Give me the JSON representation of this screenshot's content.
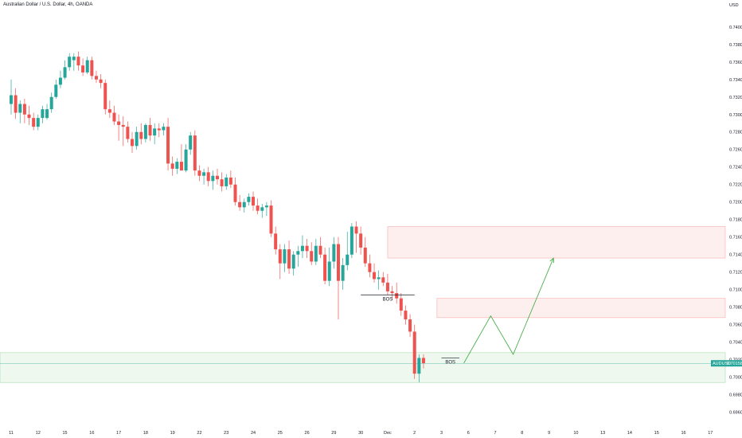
{
  "header": {
    "title": "Australian Dollar / U.S. Dollar, 4h, OANDA",
    "currency": "USD"
  },
  "colors": {
    "up": "#26a69a",
    "down": "#ef5350",
    "resistance_zone": "#ef5350",
    "support_zone": "#4caf50",
    "projection": "#4caf50",
    "axis_text": "#131722"
  },
  "chart_data": {
    "type": "candlestick",
    "symbol": "AUDUSD",
    "interval": "4h",
    "last_price": 0.70158,
    "last_price_label": "0.70158",
    "ylim": [
      0.6946,
      0.7418
    ],
    "y_ticks": [
      {
        "value": 0.74,
        "label": "0.74000"
      },
      {
        "value": 0.738,
        "label": "0.73800"
      },
      {
        "value": 0.736,
        "label": "0.73600"
      },
      {
        "value": 0.734,
        "label": "0.73400"
      },
      {
        "value": 0.732,
        "label": "0.73200"
      },
      {
        "value": 0.73,
        "label": "0.73000"
      },
      {
        "value": 0.728,
        "label": "0.72800"
      },
      {
        "value": 0.726,
        "label": "0.72600"
      },
      {
        "value": 0.724,
        "label": "0.72400"
      },
      {
        "value": 0.722,
        "label": "0.72200"
      },
      {
        "value": 0.72,
        "label": "0.72000"
      },
      {
        "value": 0.718,
        "label": "0.71800"
      },
      {
        "value": 0.716,
        "label": "0.71600"
      },
      {
        "value": 0.714,
        "label": "0.71400"
      },
      {
        "value": 0.712,
        "label": "0.71200"
      },
      {
        "value": 0.71,
        "label": "0.71000"
      },
      {
        "value": 0.708,
        "label": "0.70800"
      },
      {
        "value": 0.706,
        "label": "0.70600"
      },
      {
        "value": 0.704,
        "label": "0.70400"
      },
      {
        "value": 0.702,
        "label": "0.70200"
      },
      {
        "value": 0.7,
        "label": "0.70000"
      },
      {
        "value": 0.698,
        "label": "0.69800"
      },
      {
        "value": 0.696,
        "label": "0.69600"
      }
    ],
    "x_ticks": [
      {
        "label": "11",
        "bar": 0
      },
      {
        "label": "12",
        "bar": 6
      },
      {
        "label": "15",
        "bar": 12
      },
      {
        "label": "16",
        "bar": 18
      },
      {
        "label": "17",
        "bar": 24
      },
      {
        "label": "18",
        "bar": 30
      },
      {
        "label": "19",
        "bar": 36
      },
      {
        "label": "22",
        "bar": 42
      },
      {
        "label": "23",
        "bar": 48
      },
      {
        "label": "24",
        "bar": 54
      },
      {
        "label": "25",
        "bar": 60
      },
      {
        "label": "26",
        "bar": 66
      },
      {
        "label": "29",
        "bar": 72
      },
      {
        "label": "30",
        "bar": 78
      },
      {
        "label": "Dec",
        "bar": 84
      },
      {
        "label": "2",
        "bar": 90
      },
      {
        "label": "3",
        "bar": 96
      },
      {
        "label": "6",
        "bar": 102
      },
      {
        "label": "7",
        "bar": 108
      },
      {
        "label": "8",
        "bar": 114
      },
      {
        "label": "9",
        "bar": 120
      },
      {
        "label": "10",
        "bar": 126
      },
      {
        "label": "13",
        "bar": 132
      },
      {
        "label": "14",
        "bar": 138
      },
      {
        "label": "15",
        "bar": 144
      },
      {
        "label": "16",
        "bar": 150
      },
      {
        "label": "17",
        "bar": 156
      }
    ],
    "candles": [
      {
        "o": 0.7312,
        "h": 0.734,
        "l": 0.73,
        "c": 0.7322
      },
      {
        "o": 0.7322,
        "h": 0.733,
        "l": 0.7295,
        "c": 0.7302
      },
      {
        "o": 0.7302,
        "h": 0.7316,
        "l": 0.729,
        "c": 0.7312
      },
      {
        "o": 0.7312,
        "h": 0.7318,
        "l": 0.729,
        "c": 0.73
      },
      {
        "o": 0.73,
        "h": 0.731,
        "l": 0.7288,
        "c": 0.7296
      },
      {
        "o": 0.7296,
        "h": 0.7302,
        "l": 0.7282,
        "c": 0.7286
      },
      {
        "o": 0.7286,
        "h": 0.73,
        "l": 0.7282,
        "c": 0.7296
      },
      {
        "o": 0.7296,
        "h": 0.731,
        "l": 0.729,
        "c": 0.7306
      },
      {
        "o": 0.7296,
        "h": 0.7312,
        "l": 0.7294,
        "c": 0.7306
      },
      {
        "o": 0.7306,
        "h": 0.7325,
        "l": 0.7302,
        "c": 0.732
      },
      {
        "o": 0.732,
        "h": 0.734,
        "l": 0.7318,
        "c": 0.7334
      },
      {
        "o": 0.7334,
        "h": 0.735,
        "l": 0.733,
        "c": 0.7342
      },
      {
        "o": 0.7342,
        "h": 0.7362,
        "l": 0.734,
        "c": 0.7354
      },
      {
        "o": 0.7354,
        "h": 0.737,
        "l": 0.735,
        "c": 0.7366
      },
      {
        "o": 0.7362,
        "h": 0.737,
        "l": 0.735,
        "c": 0.7366
      },
      {
        "o": 0.7366,
        "h": 0.7372,
        "l": 0.735,
        "c": 0.7356
      },
      {
        "o": 0.7356,
        "h": 0.7364,
        "l": 0.7344,
        "c": 0.7348
      },
      {
        "o": 0.7348,
        "h": 0.7366,
        "l": 0.7346,
        "c": 0.7362
      },
      {
        "o": 0.7362,
        "h": 0.7366,
        "l": 0.734,
        "c": 0.7344
      },
      {
        "o": 0.7344,
        "h": 0.735,
        "l": 0.7336,
        "c": 0.734
      },
      {
        "o": 0.734,
        "h": 0.7346,
        "l": 0.733,
        "c": 0.7336
      },
      {
        "o": 0.7336,
        "h": 0.734,
        "l": 0.73,
        "c": 0.7306
      },
      {
        "o": 0.7306,
        "h": 0.7316,
        "l": 0.7296,
        "c": 0.7302
      },
      {
        "o": 0.7302,
        "h": 0.731,
        "l": 0.7288,
        "c": 0.7292
      },
      {
        "o": 0.7292,
        "h": 0.73,
        "l": 0.727,
        "c": 0.7288
      },
      {
        "o": 0.7288,
        "h": 0.7298,
        "l": 0.7264,
        "c": 0.7286
      },
      {
        "o": 0.7286,
        "h": 0.7292,
        "l": 0.7268,
        "c": 0.7272
      },
      {
        "o": 0.7272,
        "h": 0.728,
        "l": 0.7256,
        "c": 0.7264
      },
      {
        "o": 0.7264,
        "h": 0.7286,
        "l": 0.726,
        "c": 0.728
      },
      {
        "o": 0.728,
        "h": 0.729,
        "l": 0.7266,
        "c": 0.7272
      },
      {
        "o": 0.7272,
        "h": 0.729,
        "l": 0.7268,
        "c": 0.7288
      },
      {
        "o": 0.7288,
        "h": 0.7296,
        "l": 0.727,
        "c": 0.7276
      },
      {
        "o": 0.7276,
        "h": 0.729,
        "l": 0.7266,
        "c": 0.7284
      },
      {
        "o": 0.7284,
        "h": 0.729,
        "l": 0.7274,
        "c": 0.7282
      },
      {
        "o": 0.7282,
        "h": 0.729,
        "l": 0.7276,
        "c": 0.7286
      },
      {
        "o": 0.7286,
        "h": 0.7296,
        "l": 0.7236,
        "c": 0.7244
      },
      {
        "o": 0.7244,
        "h": 0.7252,
        "l": 0.723,
        "c": 0.7238
      },
      {
        "o": 0.7238,
        "h": 0.725,
        "l": 0.7232,
        "c": 0.7246
      },
      {
        "o": 0.7246,
        "h": 0.7266,
        "l": 0.724,
        "c": 0.7236
      },
      {
        "o": 0.7236,
        "h": 0.7266,
        "l": 0.7234,
        "c": 0.726
      },
      {
        "o": 0.726,
        "h": 0.728,
        "l": 0.7254,
        "c": 0.7276
      },
      {
        "o": 0.7276,
        "h": 0.7282,
        "l": 0.723,
        "c": 0.7236
      },
      {
        "o": 0.7236,
        "h": 0.7242,
        "l": 0.7224,
        "c": 0.723
      },
      {
        "o": 0.723,
        "h": 0.7238,
        "l": 0.722,
        "c": 0.7234
      },
      {
        "o": 0.7234,
        "h": 0.724,
        "l": 0.7218,
        "c": 0.7224
      },
      {
        "o": 0.7224,
        "h": 0.7236,
        "l": 0.7214,
        "c": 0.723
      },
      {
        "o": 0.723,
        "h": 0.7238,
        "l": 0.722,
        "c": 0.7226
      },
      {
        "o": 0.7226,
        "h": 0.7234,
        "l": 0.7212,
        "c": 0.7218
      },
      {
        "o": 0.7218,
        "h": 0.7232,
        "l": 0.7214,
        "c": 0.7228
      },
      {
        "o": 0.7228,
        "h": 0.7236,
        "l": 0.7216,
        "c": 0.722
      },
      {
        "o": 0.722,
        "h": 0.7228,
        "l": 0.7196,
        "c": 0.72
      },
      {
        "o": 0.72,
        "h": 0.7208,
        "l": 0.719,
        "c": 0.7194
      },
      {
        "o": 0.7194,
        "h": 0.7204,
        "l": 0.7188,
        "c": 0.72
      },
      {
        "o": 0.72,
        "h": 0.721,
        "l": 0.7196,
        "c": 0.7206
      },
      {
        "o": 0.7206,
        "h": 0.7212,
        "l": 0.719,
        "c": 0.7196
      },
      {
        "o": 0.7196,
        "h": 0.7204,
        "l": 0.7186,
        "c": 0.719
      },
      {
        "o": 0.719,
        "h": 0.7198,
        "l": 0.7182,
        "c": 0.7194
      },
      {
        "o": 0.7194,
        "h": 0.72,
        "l": 0.7184,
        "c": 0.7196
      },
      {
        "o": 0.7196,
        "h": 0.7202,
        "l": 0.716,
        "c": 0.7164
      },
      {
        "o": 0.7164,
        "h": 0.7172,
        "l": 0.714,
        "c": 0.7146
      },
      {
        "o": 0.7146,
        "h": 0.7152,
        "l": 0.7112,
        "c": 0.713
      },
      {
        "o": 0.713,
        "h": 0.7152,
        "l": 0.712,
        "c": 0.7146
      },
      {
        "o": 0.7146,
        "h": 0.7156,
        "l": 0.7118,
        "c": 0.7124
      },
      {
        "o": 0.7124,
        "h": 0.7144,
        "l": 0.7116,
        "c": 0.714
      },
      {
        "o": 0.714,
        "h": 0.715,
        "l": 0.7126,
        "c": 0.7144
      },
      {
        "o": 0.7144,
        "h": 0.7162,
        "l": 0.7136,
        "c": 0.715
      },
      {
        "o": 0.715,
        "h": 0.7158,
        "l": 0.7136,
        "c": 0.7144
      },
      {
        "o": 0.7144,
        "h": 0.7154,
        "l": 0.7128,
        "c": 0.7132
      },
      {
        "o": 0.7132,
        "h": 0.7158,
        "l": 0.7128,
        "c": 0.715
      },
      {
        "o": 0.715,
        "h": 0.716,
        "l": 0.7136,
        "c": 0.714
      },
      {
        "o": 0.714,
        "h": 0.7148,
        "l": 0.7106,
        "c": 0.711
      },
      {
        "o": 0.711,
        "h": 0.7148,
        "l": 0.7104,
        "c": 0.7132
      },
      {
        "o": 0.7132,
        "h": 0.716,
        "l": 0.7124,
        "c": 0.7152
      },
      {
        "o": 0.7152,
        "h": 0.716,
        "l": 0.7066,
        "c": 0.711
      },
      {
        "o": 0.711,
        "h": 0.7136,
        "l": 0.71,
        "c": 0.7128
      },
      {
        "o": 0.7128,
        "h": 0.7166,
        "l": 0.7122,
        "c": 0.714
      },
      {
        "o": 0.714,
        "h": 0.7176,
        "l": 0.7136,
        "c": 0.7172
      },
      {
        "o": 0.7172,
        "h": 0.7178,
        "l": 0.7142,
        "c": 0.7164
      },
      {
        "o": 0.7164,
        "h": 0.7172,
        "l": 0.714,
        "c": 0.7148
      },
      {
        "o": 0.7148,
        "h": 0.716,
        "l": 0.7126,
        "c": 0.713
      },
      {
        "o": 0.713,
        "h": 0.714,
        "l": 0.7114,
        "c": 0.712
      },
      {
        "o": 0.712,
        "h": 0.713,
        "l": 0.7108,
        "c": 0.7112
      },
      {
        "o": 0.7112,
        "h": 0.7122,
        "l": 0.71,
        "c": 0.7114
      },
      {
        "o": 0.7114,
        "h": 0.712,
        "l": 0.7104,
        "c": 0.7108
      },
      {
        "o": 0.7108,
        "h": 0.7118,
        "l": 0.7094,
        "c": 0.7098
      },
      {
        "o": 0.7098,
        "h": 0.7104,
        "l": 0.7088,
        "c": 0.7096
      },
      {
        "o": 0.7096,
        "h": 0.7108,
        "l": 0.7084,
        "c": 0.709
      },
      {
        "o": 0.709,
        "h": 0.7096,
        "l": 0.707,
        "c": 0.7076
      },
      {
        "o": 0.7076,
        "h": 0.7082,
        "l": 0.706,
        "c": 0.7066
      },
      {
        "o": 0.7066,
        "h": 0.7072,
        "l": 0.7046,
        "c": 0.7052
      },
      {
        "o": 0.7052,
        "h": 0.706,
        "l": 0.6998,
        "c": 0.7004
      },
      {
        "o": 0.7004,
        "h": 0.7026,
        "l": 0.6994,
        "c": 0.7022
      },
      {
        "o": 0.7022,
        "h": 0.7026,
        "l": 0.701,
        "c": 0.7016
      }
    ],
    "zones": [
      {
        "name": "supply-zone-upper",
        "kind": "resistance",
        "from_bar": 84,
        "y_low": 0.7136,
        "y_high": 0.7172
      },
      {
        "name": "supply-zone-lower",
        "kind": "resistance",
        "from_bar": 95,
        "y_low": 0.7068,
        "y_high": 0.709
      },
      {
        "name": "demand-zone",
        "kind": "support",
        "from_bar": -1,
        "y_low": 0.6994,
        "y_high": 0.7028
      }
    ],
    "annotations": [
      {
        "text": "BOS",
        "bar_from": 78,
        "bar_to": 90,
        "y": 0.7094
      },
      {
        "text": "BOS",
        "bar_from": 96,
        "bar_to": 100,
        "y": 0.7022
      }
    ],
    "projection_path": [
      {
        "bar": 101,
        "y": 0.7016
      },
      {
        "bar": 107,
        "y": 0.707
      },
      {
        "bar": 112,
        "y": 0.7026
      },
      {
        "bar": 121,
        "y": 0.7136
      }
    ]
  }
}
